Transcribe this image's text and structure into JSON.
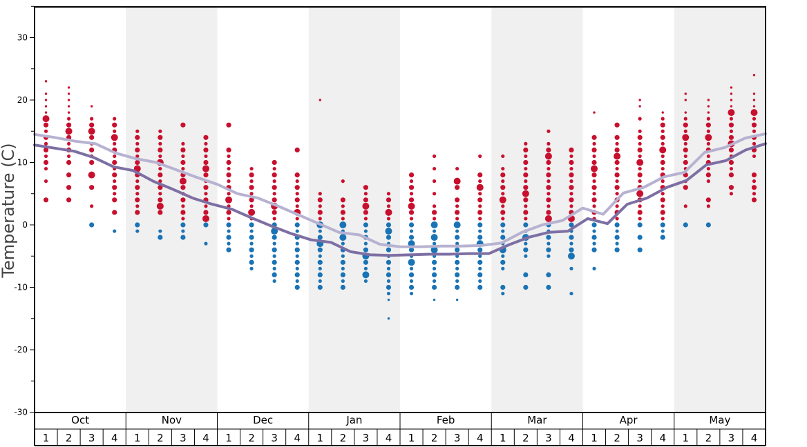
{
  "chart_data": {
    "type": "scatter",
    "title": "",
    "ylabel": "Temperature (C)",
    "ylim": [
      -30,
      35
    ],
    "yticks": [
      30,
      20,
      10,
      0,
      -10,
      -20,
      -30
    ],
    "months": [
      "Oct",
      "Nov",
      "Dec",
      "Jan",
      "Feb",
      "Mar",
      "Apr",
      "May"
    ],
    "weeks": [
      "1",
      "2",
      "3",
      "4"
    ],
    "colors": {
      "warm_dots": "#c8102e",
      "cold_dots": "#1a73b5",
      "shade_band": "#f0f0f0",
      "line_light": "#b7b2d1",
      "line_dark": "#7d6fa3"
    },
    "series": [
      {
        "values": [
          14.5,
          14.0,
          13.4,
          13.0,
          11.5,
          10.6,
          10.0,
          8.8,
          7.6,
          6.5,
          5.0,
          4.3,
          3.0,
          1.6,
          0.2,
          -1.2,
          -1.6,
          -3.1,
          -3.5,
          -3.5,
          -3.4,
          -3.4,
          -3.3,
          -2.9,
          -1.2,
          0.0,
          0.7,
          2.7,
          1.7,
          5.1,
          6.0,
          7.7,
          8.4,
          11.6,
          12.4,
          13.9,
          14.6
        ]
      },
      {
        "values": [
          12.8,
          12.3,
          11.8,
          10.8,
          9.3,
          8.7,
          7.0,
          5.7,
          4.3,
          3.3,
          2.5,
          1.1,
          -0.2,
          -1.4,
          -2.4,
          -2.8,
          -4.3,
          -4.8,
          -4.9,
          -4.8,
          -4.7,
          -4.7,
          -4.6,
          -4.6,
          -3.2,
          -2.0,
          -1.2,
          -1.0,
          1.0,
          0.2,
          3.3,
          4.3,
          6.0,
          7.1,
          9.6,
          10.3,
          12.0,
          13.0
        ]
      }
    ],
    "dot_columns": [
      {
        "y": [
          23,
          21,
          20,
          19,
          18,
          17,
          16,
          15,
          14,
          13,
          12,
          11,
          10,
          9,
          7,
          4
        ],
        "big": [
          17
        ]
      },
      {
        "y": [
          22,
          21,
          20,
          19,
          18,
          17,
          16,
          15,
          14,
          13,
          12,
          11,
          10,
          8,
          6,
          4
        ],
        "big": [
          15
        ]
      },
      {
        "y": [
          19,
          17,
          16,
          15,
          14,
          13,
          12,
          11,
          10,
          8,
          6,
          3,
          0
        ],
        "big": [
          15,
          8
        ]
      },
      {
        "y": [
          17,
          16,
          15,
          14,
          13,
          12,
          11,
          10,
          9,
          8,
          7,
          6,
          5,
          4,
          2,
          -1
        ],
        "big": [
          14
        ]
      },
      {
        "y": [
          15,
          14,
          13,
          12,
          11,
          10,
          9,
          8,
          7,
          6,
          5,
          4,
          3,
          2,
          0,
          -1
        ],
        "big": [
          9
        ]
      },
      {
        "y": [
          15,
          14,
          13,
          12,
          11,
          10,
          9,
          8,
          7,
          6,
          5,
          4,
          3,
          2,
          -1,
          -2
        ],
        "big": [
          10,
          3
        ]
      },
      {
        "y": [
          16,
          13,
          12,
          11,
          10,
          9,
          8,
          7,
          6,
          5,
          4,
          3,
          2,
          1,
          0,
          -1,
          -2
        ],
        "big": [
          7
        ]
      },
      {
        "y": [
          14,
          13,
          12,
          11,
          10,
          9,
          8,
          7,
          6,
          5,
          4,
          3,
          2,
          1,
          0,
          -3
        ],
        "big": [
          9,
          1
        ]
      },
      {
        "y": [
          16,
          12,
          11,
          10,
          9,
          8,
          7,
          6,
          5,
          4,
          3,
          2,
          1,
          0,
          -1,
          -2,
          -3,
          -4
        ],
        "big": [
          4
        ]
      },
      {
        "y": [
          9,
          8,
          7,
          6,
          5,
          4,
          3,
          2,
          1,
          0,
          -1,
          -2,
          -3,
          -4,
          -5,
          -6,
          -7
        ],
        "big": [
          2
        ]
      },
      {
        "y": [
          10,
          9,
          8,
          7,
          6,
          5,
          4,
          3,
          2,
          1,
          0,
          -1,
          -2,
          -3,
          -4,
          -5,
          -6,
          -7,
          -8,
          -9
        ],
        "big": [
          3,
          -1
        ]
      },
      {
        "y": [
          12,
          8,
          7,
          6,
          5,
          4,
          3,
          2,
          1,
          0,
          -1,
          -2,
          -3,
          -4,
          -5,
          -6,
          -7,
          -8,
          -9,
          -10
        ],
        "big": [
          2
        ]
      },
      {
        "y": [
          20,
          5,
          4,
          3,
          2,
          1,
          0,
          -1,
          -2,
          -3,
          -4,
          -5,
          -6,
          -7,
          -8,
          -9,
          -10
        ],
        "big": [
          0,
          -3
        ]
      },
      {
        "y": [
          7,
          4,
          3,
          2,
          1,
          0,
          -1,
          -2,
          -3,
          -4,
          -5,
          -6,
          -7,
          -8,
          -9,
          -10
        ],
        "big": [
          0,
          -2
        ]
      },
      {
        "y": [
          6,
          5,
          4,
          3,
          2,
          1,
          0,
          -1,
          -2,
          -3,
          -4,
          -5,
          -6,
          -7,
          -8,
          -9
        ],
        "big": [
          3,
          -5,
          -8
        ]
      },
      {
        "y": [
          5,
          4,
          3,
          2,
          1,
          0,
          -1,
          -2,
          -3,
          -4,
          -5,
          -6,
          -7,
          -8,
          -9,
          -10,
          -11,
          -12,
          -15
        ],
        "big": [
          2,
          -1
        ]
      },
      {
        "y": [
          8,
          7,
          6,
          5,
          4,
          3,
          2,
          1,
          0,
          -1,
          -2,
          -3,
          -4,
          -5,
          -6,
          -7,
          -8,
          -9,
          -10,
          -11
        ],
        "big": [
          3,
          -3,
          -6
        ]
      },
      {
        "y": [
          11,
          9,
          7,
          5,
          3,
          2,
          1,
          0,
          -1,
          -2,
          -3,
          -4,
          -5,
          -6,
          -7,
          -8,
          -9,
          -10,
          -12
        ],
        "big": [
          0,
          -2,
          -4
        ]
      },
      {
        "y": [
          9,
          7,
          6,
          4,
          3,
          2,
          1,
          0,
          -1,
          -2,
          -3,
          -4,
          -5,
          -6,
          -7,
          -8,
          -9,
          -10,
          -12
        ],
        "big": [
          7,
          0
        ]
      },
      {
        "y": [
          11,
          8,
          7,
          6,
          5,
          4,
          3,
          2,
          1,
          0,
          -1,
          -2,
          -3,
          -4,
          -5,
          -6,
          -7,
          -8,
          -9,
          -10
        ],
        "big": [
          6,
          -3
        ]
      },
      {
        "y": [
          11,
          9,
          8,
          7,
          6,
          5,
          4,
          3,
          2,
          1,
          0,
          -1,
          -2,
          -3,
          -4,
          -5,
          -6,
          -7,
          -10,
          -11
        ],
        "big": [
          4,
          -4
        ]
      },
      {
        "y": [
          13,
          12,
          11,
          10,
          9,
          8,
          7,
          6,
          5,
          4,
          3,
          2,
          1,
          0,
          -1,
          -2,
          -3,
          -4,
          -5,
          -8,
          -10
        ],
        "big": [
          5,
          -2
        ]
      },
      {
        "y": [
          15,
          13,
          12,
          11,
          10,
          9,
          8,
          7,
          6,
          5,
          4,
          3,
          2,
          1,
          0,
          -1,
          -2,
          -3,
          -4,
          -5,
          -8,
          -10
        ],
        "big": [
          11,
          1
        ]
      },
      {
        "y": [
          12,
          11,
          10,
          9,
          8,
          7,
          6,
          5,
          4,
          3,
          2,
          1,
          0,
          -1,
          -2,
          -3,
          -4,
          -5,
          -7,
          -11
        ],
        "big": [
          1,
          -5
        ]
      },
      {
        "y": [
          18,
          14,
          13,
          12,
          11,
          10,
          9,
          8,
          7,
          6,
          5,
          4,
          3,
          2,
          1,
          0,
          -1,
          -2,
          -3,
          -4,
          -7
        ],
        "big": [
          9
        ]
      },
      {
        "y": [
          16,
          14,
          13,
          12,
          11,
          10,
          9,
          8,
          7,
          6,
          5,
          4,
          3,
          2,
          1,
          0,
          -1,
          -2,
          -3,
          -4
        ],
        "big": [
          11
        ]
      },
      {
        "y": [
          20,
          19,
          17,
          15,
          14,
          13,
          12,
          11,
          10,
          9,
          8,
          7,
          6,
          5,
          4,
          3,
          2,
          1,
          0,
          -2,
          -4
        ],
        "big": [
          10,
          5
        ]
      },
      {
        "y": [
          18,
          17,
          16,
          15,
          14,
          13,
          12,
          11,
          10,
          9,
          8,
          7,
          6,
          5,
          4,
          3,
          2,
          1,
          0,
          -1,
          -2
        ],
        "big": [
          12
        ]
      },
      {
        "y": [
          21,
          20,
          18,
          17,
          16,
          15,
          14,
          13,
          12,
          11,
          10,
          9,
          8,
          7,
          6,
          3,
          0
        ],
        "big": [
          14
        ]
      },
      {
        "y": [
          20,
          19,
          18,
          17,
          16,
          15,
          14,
          13,
          12,
          11,
          10,
          9,
          8,
          7,
          4,
          3,
          0
        ],
        "big": [
          14
        ]
      },
      {
        "y": [
          22,
          21,
          20,
          19,
          18,
          17,
          16,
          15,
          14,
          13,
          12,
          11,
          10,
          9,
          8,
          6,
          5
        ],
        "big": [
          18,
          13
        ]
      },
      {
        "y": [
          24,
          21,
          20,
          19,
          18,
          17,
          16,
          15,
          14,
          13,
          12,
          11,
          8,
          7,
          6,
          5,
          4
        ],
        "big": [
          18
        ]
      }
    ]
  }
}
